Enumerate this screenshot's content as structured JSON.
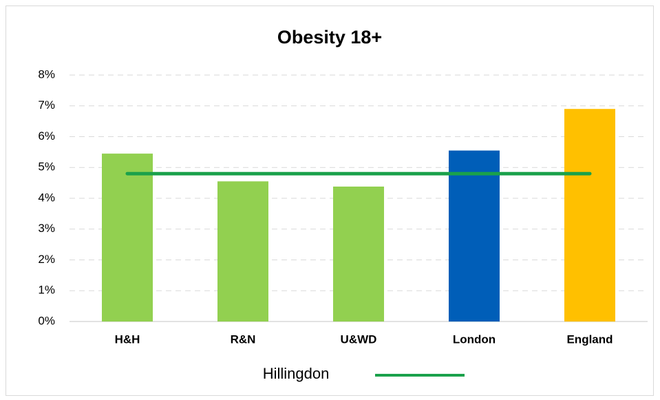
{
  "chart_data": {
    "type": "bar",
    "title": "Obesity 18+",
    "categories": [
      "H&H",
      "R&N",
      "U&WD",
      "London",
      "England"
    ],
    "values": [
      5.45,
      4.55,
      4.38,
      5.55,
      6.9
    ],
    "colors": [
      "#92d050",
      "#92d050",
      "#92d050",
      "#005eb8",
      "#ffc000"
    ],
    "line_series": [
      {
        "name": "Hillingdon",
        "color": "#1aa14b",
        "values": [
          4.8,
          4.8,
          4.8,
          4.8,
          4.8
        ]
      }
    ],
    "ylim": [
      0,
      8
    ],
    "yticks": [
      {
        "value": 0,
        "label": "0%"
      },
      {
        "value": 1,
        "label": "1%"
      },
      {
        "value": 2,
        "label": "2%"
      },
      {
        "value": 3,
        "label": "3%"
      },
      {
        "value": 4,
        "label": "4%"
      },
      {
        "value": 5,
        "label": "5%"
      },
      {
        "value": 6,
        "label": "6%"
      },
      {
        "value": 7,
        "label": "7%"
      },
      {
        "value": 8,
        "label": "8%"
      }
    ],
    "grid": true,
    "legend": "bottom"
  }
}
